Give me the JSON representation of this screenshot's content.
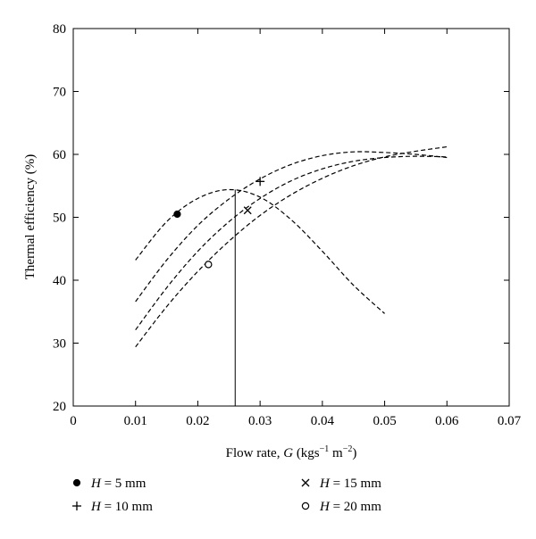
{
  "chart_data": {
    "type": "line",
    "title": "",
    "xlabel": "Flow rate, G (kgs⁻¹ m⁻²)",
    "xlabel_parts": {
      "prefix": "Flow rate, ",
      "var": "G",
      "mid": " (kgs",
      "sup1": "−1",
      "mid2": " m",
      "sup2": "−2",
      "suffix": ")"
    },
    "ylabel": "Thermal efficiency (%)",
    "xlim": [
      0,
      0.07
    ],
    "ylim": [
      20,
      80
    ],
    "xticks": [
      "0",
      "0.01",
      "0.02",
      "0.03",
      "0.04",
      "0.05",
      "0.06",
      "0.07"
    ],
    "yticks": [
      "20",
      "30",
      "40",
      "50",
      "60",
      "70",
      "80"
    ],
    "grid": false,
    "legend_position": "bottom",
    "vertical_line_x": 0.026,
    "series": [
      {
        "name": "H = 5 mm",
        "var": "H",
        "value_text": " = 5 mm",
        "marker": "filled-circle",
        "marker_point": [
          0.0167,
          50.5
        ],
        "points": [
          [
            0.01,
            43.2
          ],
          [
            0.015,
            49.3
          ],
          [
            0.02,
            53.0
          ],
          [
            0.025,
            54.4
          ],
          [
            0.03,
            53.2
          ],
          [
            0.035,
            49.6
          ],
          [
            0.04,
            44.6
          ],
          [
            0.045,
            39.2
          ],
          [
            0.05,
            34.7
          ]
        ]
      },
      {
        "name": "H = 10 mm",
        "var": "H",
        "value_text": " = 10 mm",
        "marker": "plus",
        "marker_point": [
          0.03,
          55.7
        ],
        "points": [
          [
            0.01,
            36.6
          ],
          [
            0.015,
            43.2
          ],
          [
            0.02,
            48.7
          ],
          [
            0.025,
            52.9
          ],
          [
            0.03,
            56.1
          ],
          [
            0.035,
            58.4
          ],
          [
            0.04,
            59.8
          ],
          [
            0.045,
            60.4
          ],
          [
            0.05,
            60.3
          ],
          [
            0.055,
            60.0
          ],
          [
            0.06,
            59.5
          ]
        ]
      },
      {
        "name": "H = 15 mm",
        "var": "H",
        "value_text": " = 15 mm",
        "marker": "cross",
        "marker_point": [
          0.028,
          51.1
        ],
        "points": [
          [
            0.01,
            32.1
          ],
          [
            0.015,
            38.8
          ],
          [
            0.02,
            44.6
          ],
          [
            0.025,
            49.3
          ],
          [
            0.03,
            53.0
          ],
          [
            0.035,
            55.8
          ],
          [
            0.04,
            57.7
          ],
          [
            0.045,
            58.9
          ],
          [
            0.05,
            59.5
          ],
          [
            0.055,
            59.7
          ],
          [
            0.06,
            59.6
          ]
        ]
      },
      {
        "name": "H = 20 mm",
        "var": "H",
        "value_text": " = 20 mm",
        "marker": "open-circle",
        "marker_point": [
          0.0217,
          42.5
        ],
        "points": [
          [
            0.01,
            29.4
          ],
          [
            0.015,
            35.8
          ],
          [
            0.02,
            41.4
          ],
          [
            0.025,
            46.2
          ],
          [
            0.03,
            50.3
          ],
          [
            0.035,
            53.6
          ],
          [
            0.04,
            56.2
          ],
          [
            0.045,
            58.2
          ],
          [
            0.05,
            59.6
          ],
          [
            0.055,
            60.5
          ],
          [
            0.06,
            61.2
          ]
        ]
      }
    ]
  }
}
